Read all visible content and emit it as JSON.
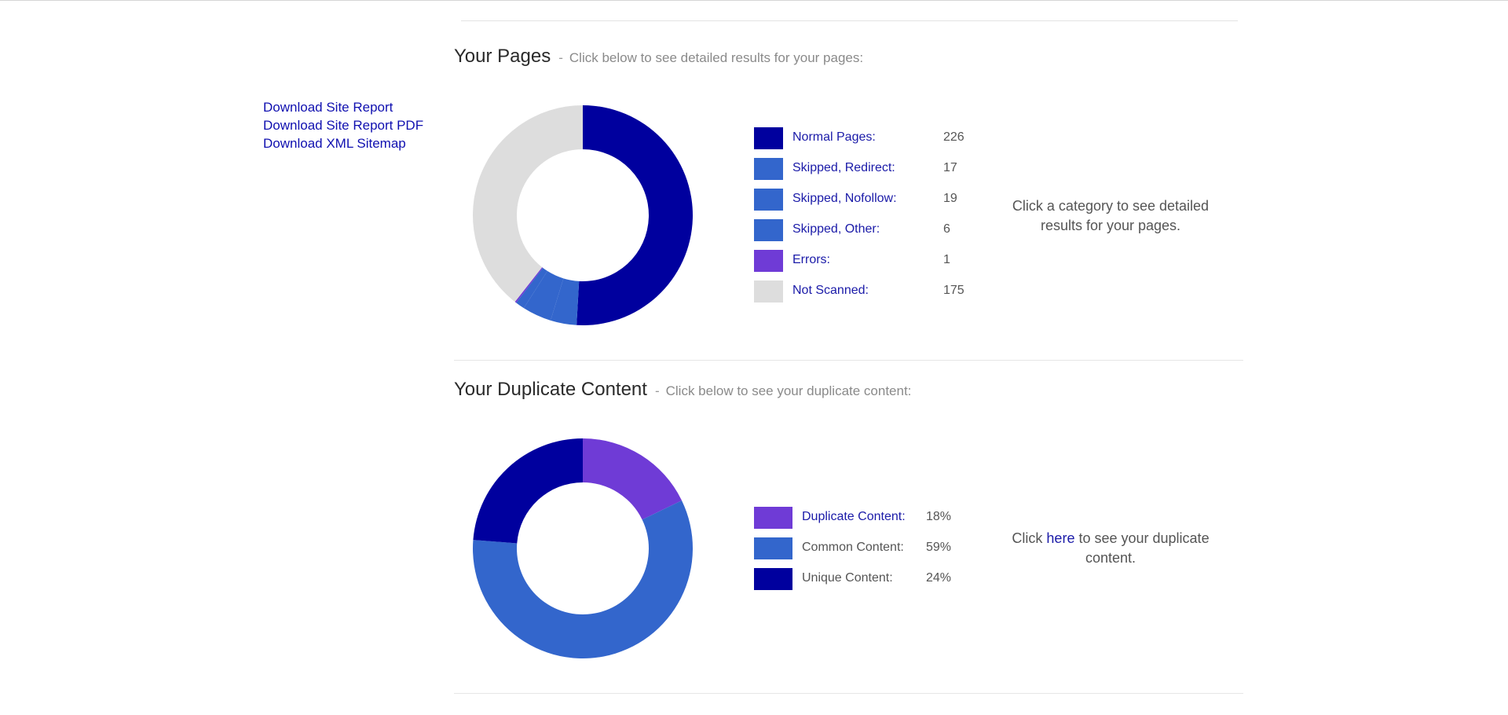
{
  "links": [
    {
      "label": "Download Site Report"
    },
    {
      "label": "Download Site Report PDF"
    },
    {
      "label": "Download XML Sitemap"
    }
  ],
  "pages_section": {
    "title": "Your Pages",
    "separator": "-",
    "subtitle": "Click below to see detailed results for your pages:",
    "note": "Click a category to see detailed results for your pages."
  },
  "duplicate_section": {
    "title": "Your Duplicate Content",
    "separator": "-",
    "subtitle": "Click below to see your duplicate content:",
    "note_before": "Click",
    "note_link": "here",
    "note_after": "to see your duplicate content."
  },
  "chart_data": [
    {
      "type": "pie",
      "variant": "donut",
      "categories": [
        "Normal Pages:",
        "Skipped, Redirect:",
        "Skipped, Nofollow:",
        "Skipped, Other:",
        "Errors:",
        "Not Scanned:"
      ],
      "values": [
        226,
        17,
        19,
        6,
        1,
        175
      ],
      "value_labels": [
        "226",
        "17",
        "19",
        "6",
        "1",
        "175"
      ],
      "colors": [
        "#00009e",
        "#3366cc",
        "#3366cc",
        "#3366cc",
        "#6f3bd6",
        "#dddddd"
      ]
    },
    {
      "type": "pie",
      "variant": "donut",
      "categories": [
        "Duplicate Content:",
        "Common Content:",
        "Unique Content:"
      ],
      "values": [
        18,
        59,
        24
      ],
      "value_labels": [
        "18%",
        "59%",
        "24%"
      ],
      "colors": [
        "#6f3bd6",
        "#3366cc",
        "#00009e"
      ],
      "label_style": [
        "link",
        "plain",
        "plain"
      ]
    }
  ]
}
